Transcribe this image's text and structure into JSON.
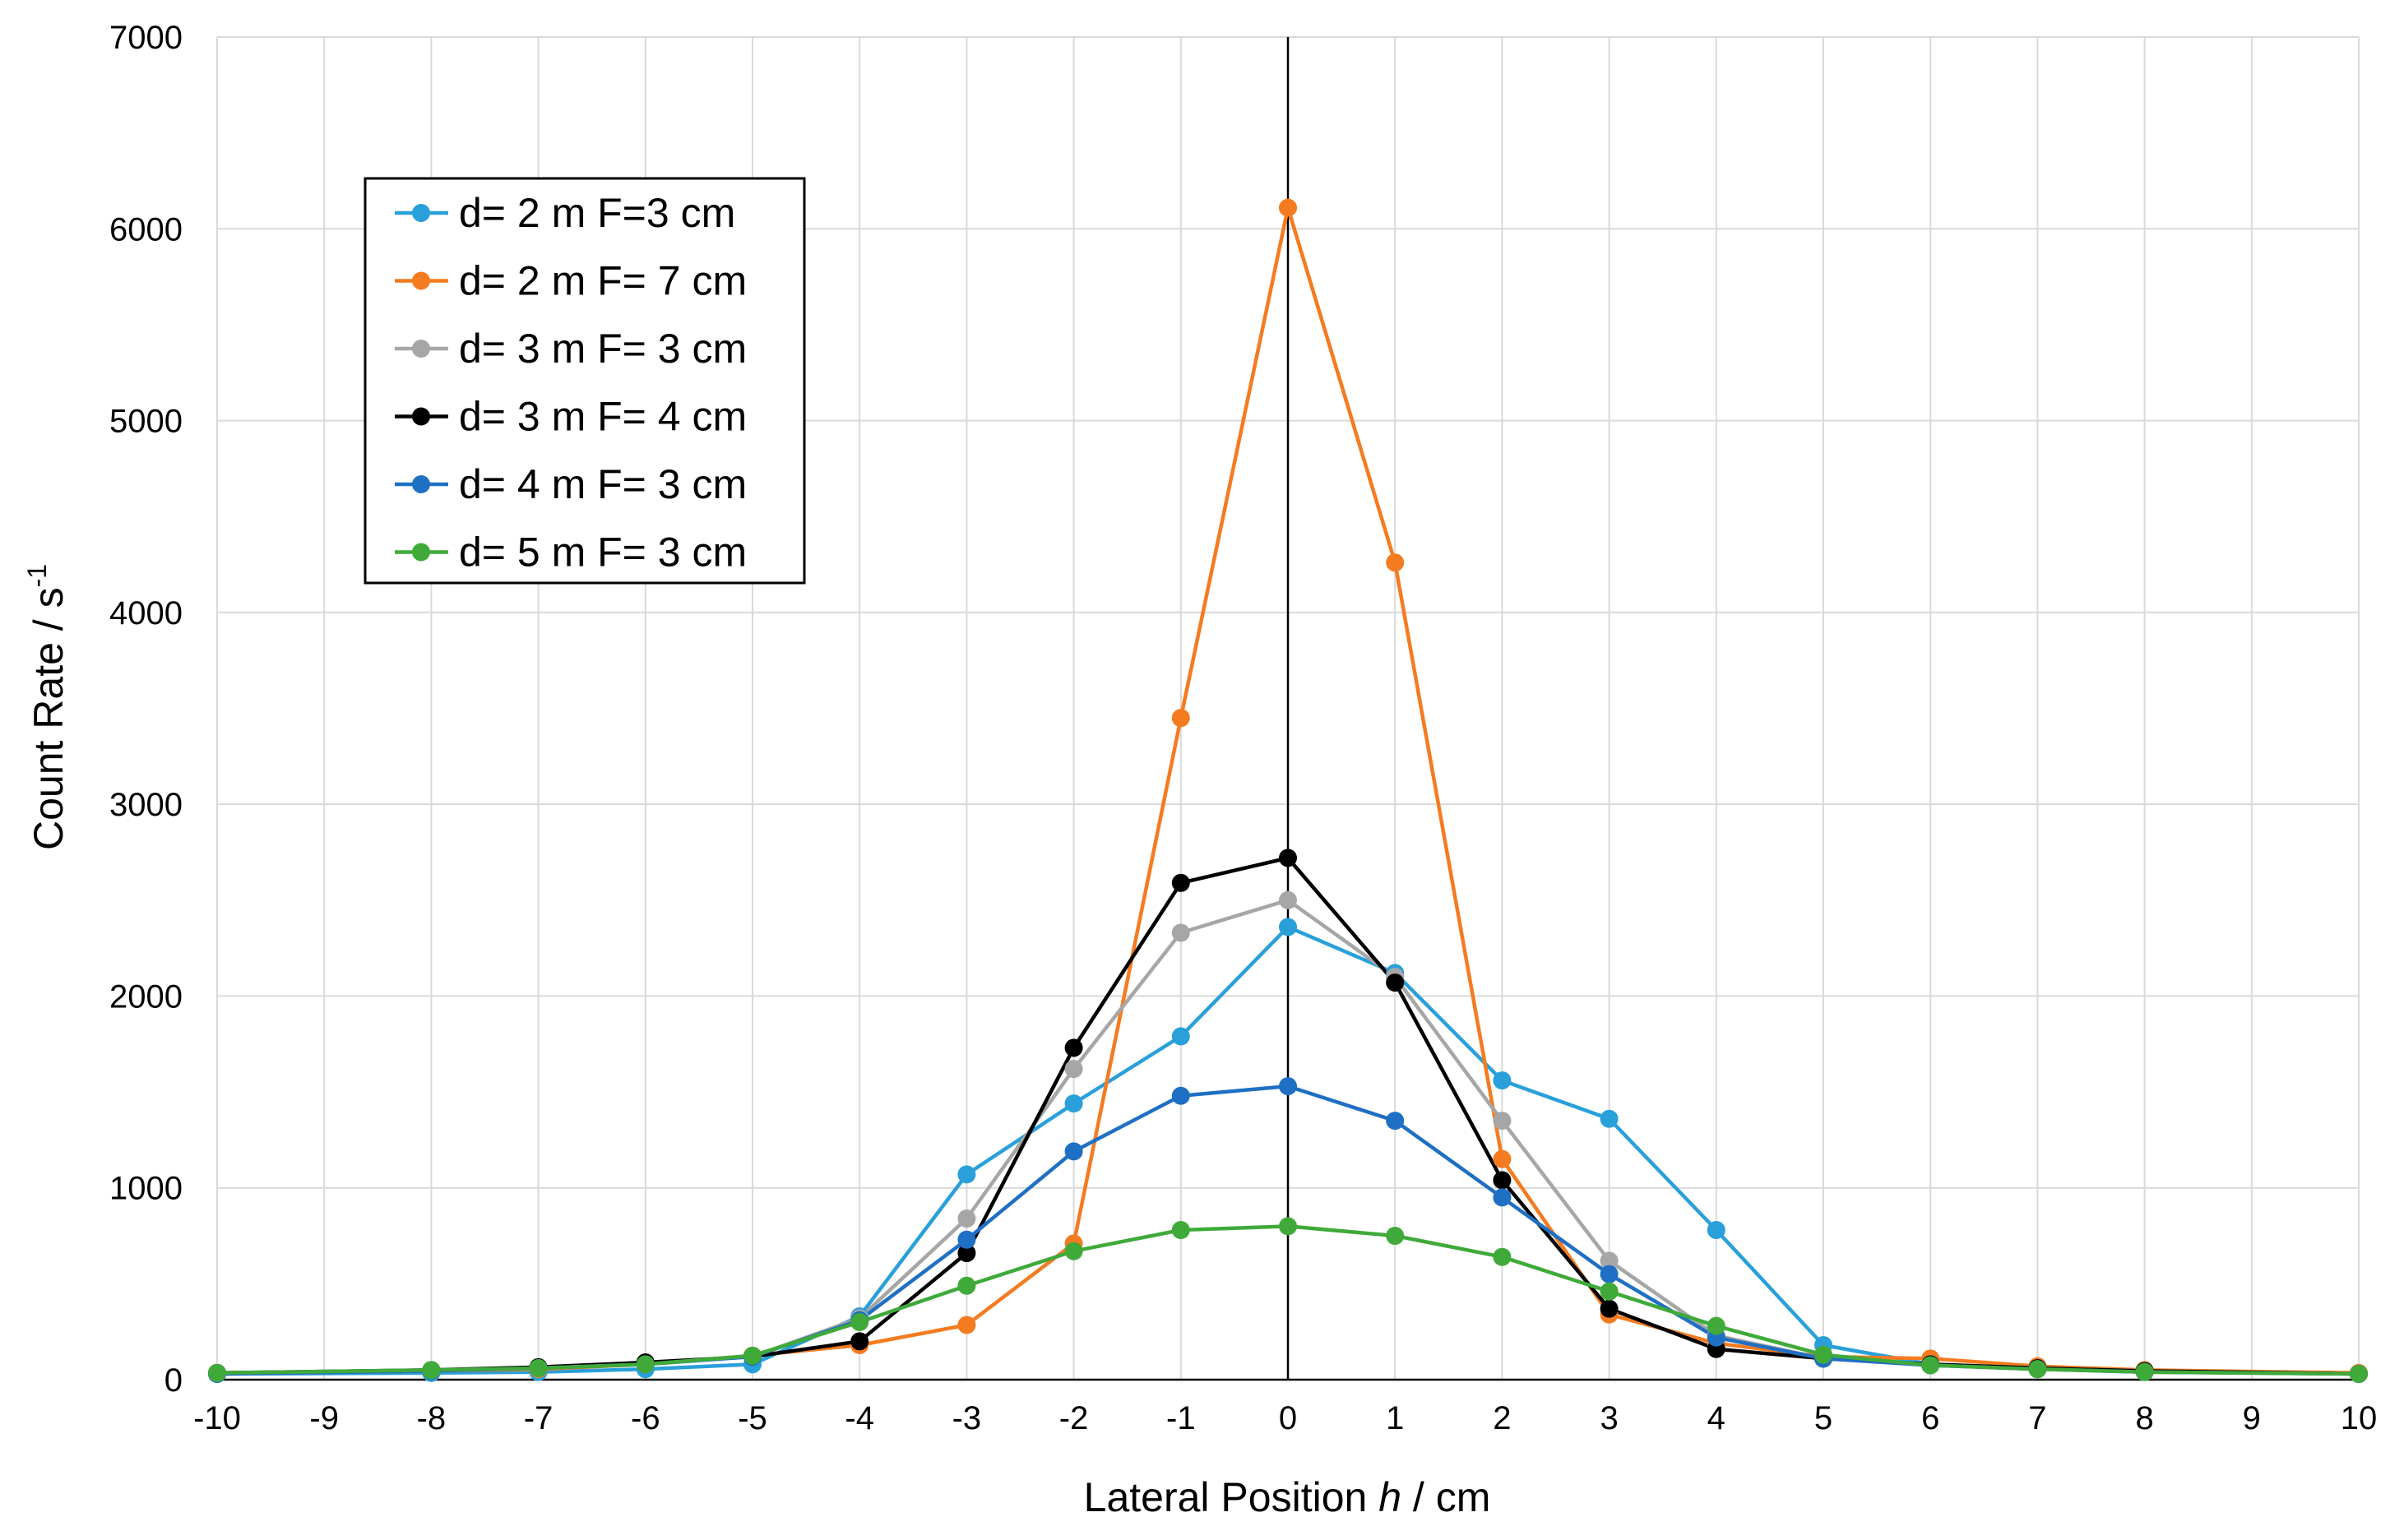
{
  "chart_data": {
    "type": "line",
    "xlabel_prefix": "Lateral Position ",
    "xlabel_var": "h",
    "xlabel_suffix": " / cm",
    "ylabel_main": "Count Rate / s",
    "ylabel_sup": "-1",
    "xlim": [
      -10,
      10
    ],
    "ylim": [
      0,
      7000
    ],
    "xticks": [
      -10,
      -9,
      -8,
      -7,
      -6,
      -5,
      -4,
      -3,
      -2,
      -1,
      0,
      1,
      2,
      3,
      4,
      5,
      6,
      7,
      8,
      9,
      10
    ],
    "yticks": [
      0,
      1000,
      2000,
      3000,
      4000,
      5000,
      6000,
      7000
    ],
    "grid": true,
    "legend_position": "top-left",
    "series": [
      {
        "name": "d= 2 m F=3 cm",
        "color": "#29A0DA",
        "x": [
          -10,
          -8,
          -7,
          -6,
          -5,
          -4,
          -3,
          -2,
          -1,
          0,
          1,
          2,
          3,
          4,
          5,
          6,
          7,
          8,
          10
        ],
        "y": [
          30,
          35,
          40,
          55,
          80,
          330,
          1070,
          1440,
          1790,
          2360,
          2120,
          1560,
          1360,
          780,
          180,
          80,
          60,
          45,
          30
        ]
      },
      {
        "name": "d= 2 m F= 7 cm",
        "color": "#F47B20",
        "x": [
          -10,
          -8,
          -7,
          -6,
          -5,
          -4,
          -3,
          -2,
          -1,
          0,
          1,
          2,
          3,
          4,
          5,
          6,
          7,
          8,
          10
        ],
        "y": [
          35,
          45,
          55,
          80,
          125,
          180,
          285,
          710,
          3450,
          6110,
          4260,
          1150,
          340,
          190,
          120,
          110,
          70,
          50,
          35
        ]
      },
      {
        "name": "d= 3 m F= 3 cm",
        "color": "#A6A6A6",
        "x": [
          -10,
          -8,
          -7,
          -6,
          -5,
          -4,
          -3,
          -2,
          -1,
          0,
          1,
          2,
          3,
          4,
          5,
          6,
          7,
          8,
          10
        ],
        "y": [
          30,
          45,
          60,
          85,
          120,
          320,
          840,
          1620,
          2330,
          2500,
          2100,
          1350,
          620,
          230,
          110,
          80,
          60,
          45,
          30
        ]
      },
      {
        "name": "d= 3 m F= 4 cm",
        "color": "#000000",
        "x": [
          -10,
          -8,
          -7,
          -6,
          -5,
          -4,
          -3,
          -2,
          -1,
          0,
          1,
          2,
          3,
          4,
          5,
          6,
          7,
          8,
          10
        ],
        "y": [
          35,
          50,
          65,
          90,
          120,
          200,
          660,
          1730,
          2590,
          2720,
          2070,
          1040,
          370,
          160,
          110,
          80,
          60,
          45,
          30
        ]
      },
      {
        "name": "d= 4 m F= 3 cm",
        "color": "#1F6FC4",
        "x": [
          -10,
          -8,
          -7,
          -6,
          -5,
          -4,
          -3,
          -2,
          -1,
          0,
          1,
          2,
          3,
          4,
          5,
          6,
          7,
          8,
          10
        ],
        "y": [
          30,
          45,
          60,
          80,
          120,
          310,
          730,
          1190,
          1480,
          1530,
          1350,
          950,
          550,
          220,
          110,
          75,
          55,
          40,
          30
        ]
      },
      {
        "name": "d= 5 m F= 3 cm",
        "color": "#3FAA3A",
        "x": [
          -10,
          -8,
          -7,
          -6,
          -5,
          -4,
          -3,
          -2,
          -1,
          0,
          1,
          2,
          3,
          4,
          5,
          6,
          7,
          8,
          10
        ],
        "y": [
          35,
          50,
          60,
          80,
          125,
          300,
          490,
          670,
          780,
          800,
          750,
          640,
          460,
          280,
          130,
          75,
          55,
          40,
          30
        ]
      }
    ]
  }
}
